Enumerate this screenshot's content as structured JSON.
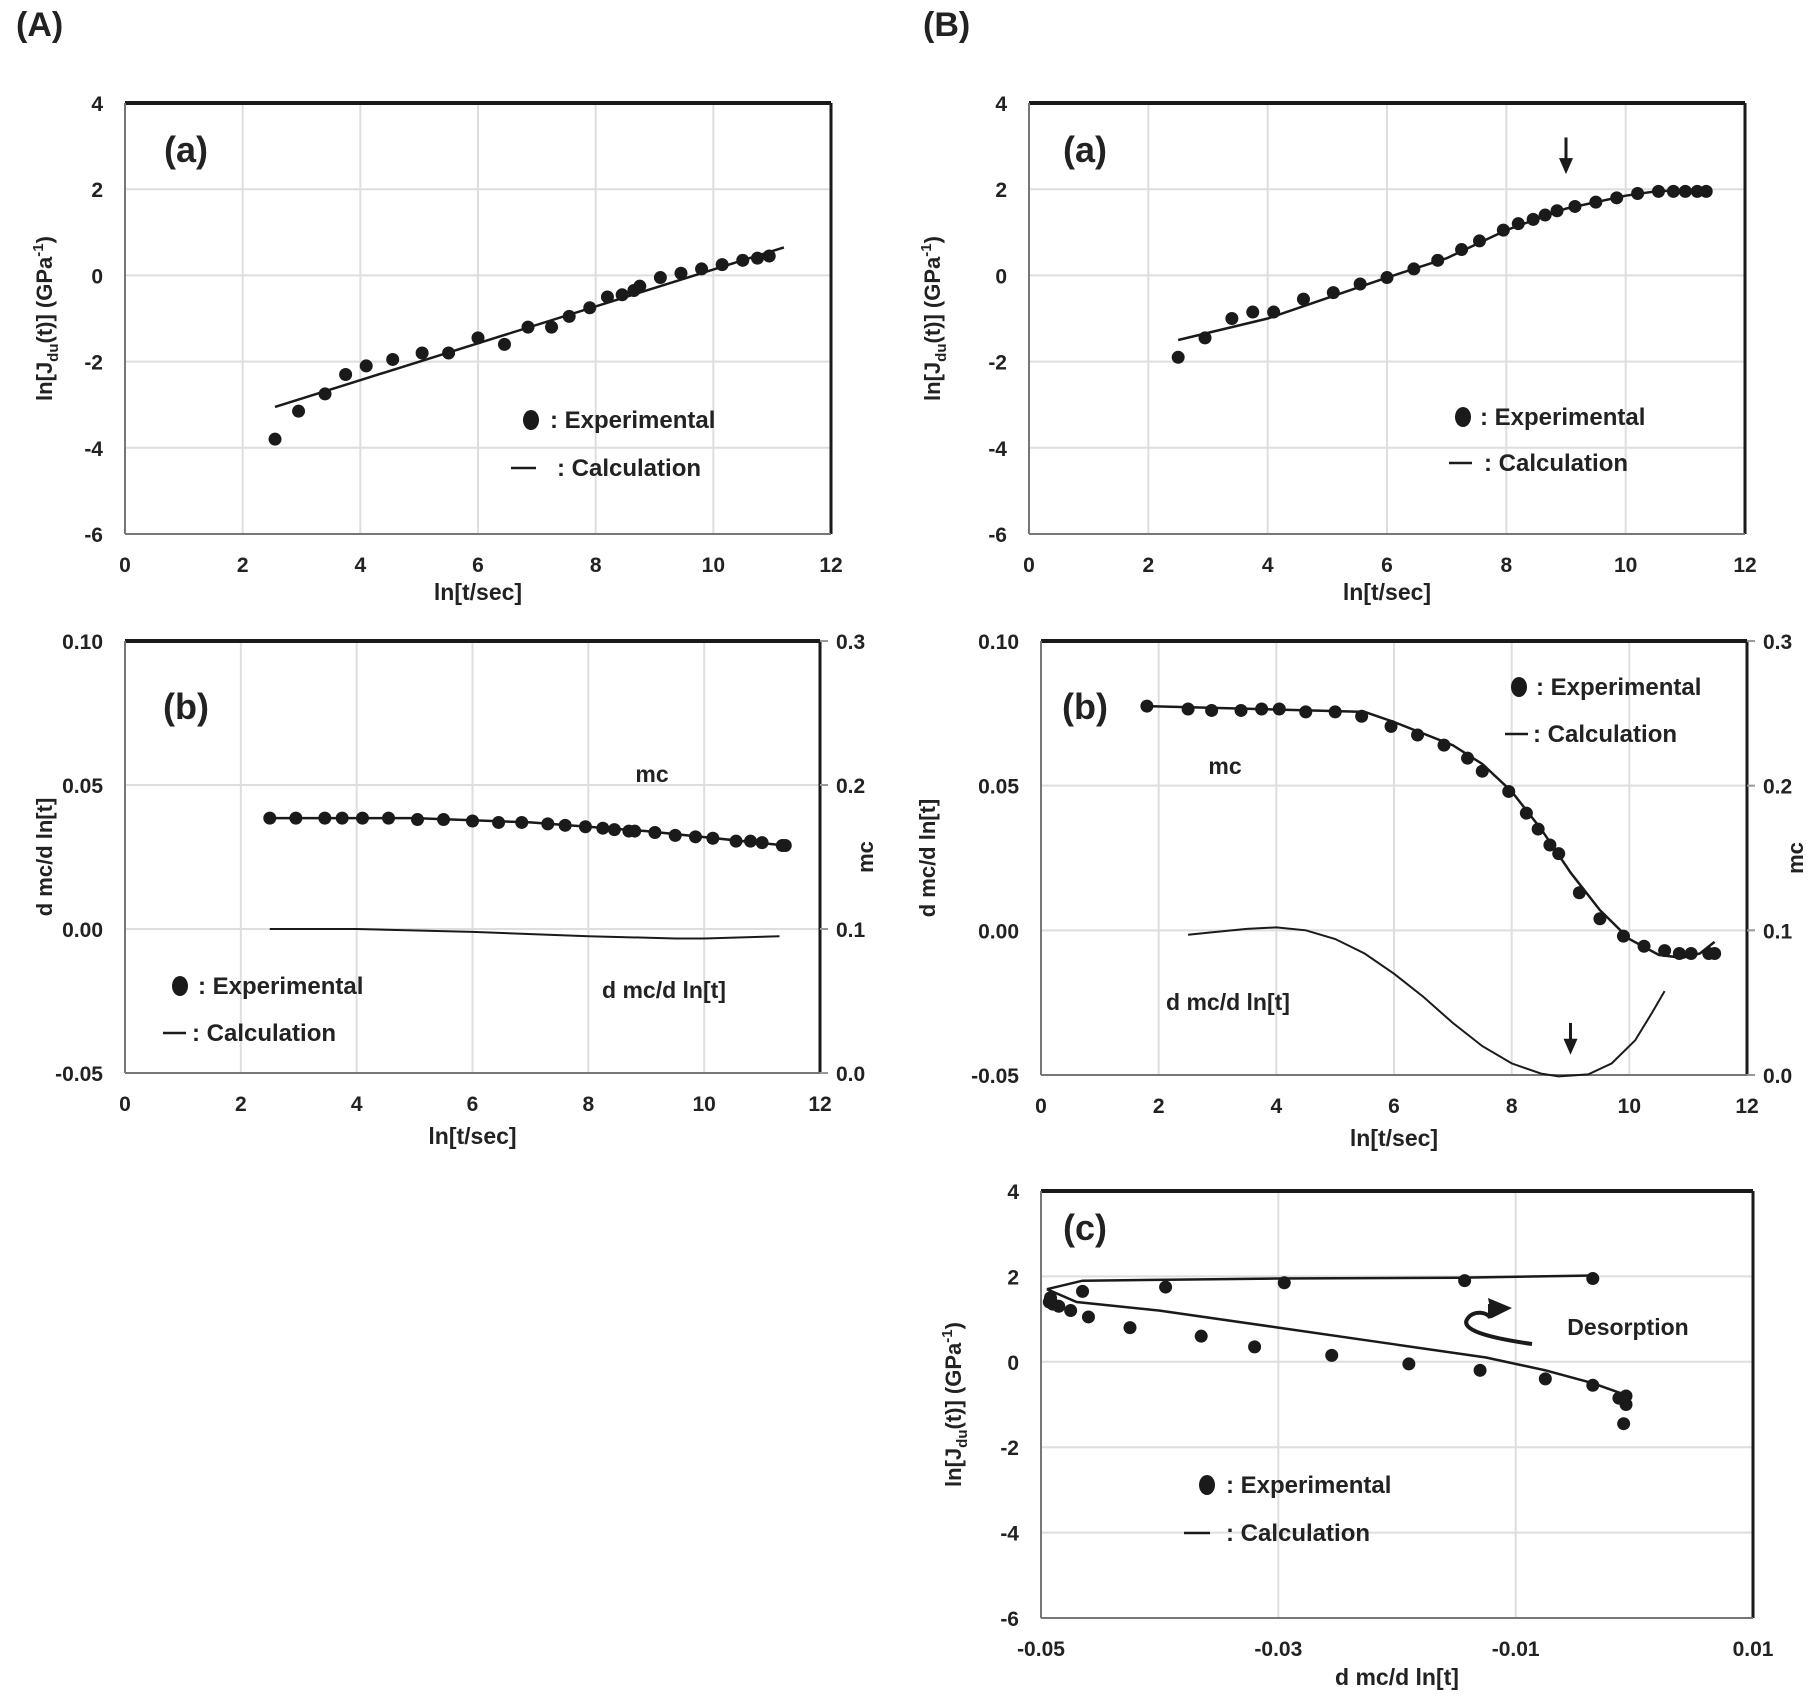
{
  "figure_labels": [
    "(A)",
    "(B)"
  ],
  "chart_data": [
    {
      "id": "A-a",
      "group": "(A)",
      "panel_label": "(a)",
      "type": "scatter+line",
      "xlabel": "ln[t/sec]",
      "ylabel_parts": [
        "ln[J",
        "du",
        "(t)]  (GPa",
        "-1",
        ")"
      ],
      "xlim": [
        0,
        12
      ],
      "ylim": [
        -6,
        4
      ],
      "xticks": [
        0,
        2,
        4,
        6,
        8,
        10,
        12
      ],
      "xtick_labels": [
        "0",
        "2",
        "4",
        "6",
        "8",
        "10",
        "12"
      ],
      "yticks": [
        -6,
        -4,
        -2,
        0,
        2,
        4
      ],
      "ytick_labels": [
        "-6",
        "-4",
        "-2",
        "0",
        "2",
        "4"
      ],
      "grid": true,
      "legend": [
        {
          "marker": "dot",
          "label": ": Experimental"
        },
        {
          "marker": "line",
          "label": ": Calculation"
        }
      ],
      "points": [
        [
          2.55,
          -3.8
        ],
        [
          2.95,
          -3.15
        ],
        [
          3.4,
          -2.75
        ],
        [
          3.75,
          -2.3
        ],
        [
          4.1,
          -2.1
        ],
        [
          4.55,
          -1.95
        ],
        [
          5.05,
          -1.8
        ],
        [
          5.5,
          -1.8
        ],
        [
          6.0,
          -1.45
        ],
        [
          6.45,
          -1.6
        ],
        [
          6.85,
          -1.2
        ],
        [
          7.25,
          -1.2
        ],
        [
          7.55,
          -0.95
        ],
        [
          7.9,
          -0.75
        ],
        [
          8.2,
          -0.5
        ],
        [
          8.45,
          -0.45
        ],
        [
          8.65,
          -0.35
        ],
        [
          8.75,
          -0.25
        ],
        [
          9.1,
          -0.05
        ],
        [
          9.45,
          0.05
        ],
        [
          9.8,
          0.15
        ],
        [
          10.15,
          0.25
        ],
        [
          10.5,
          0.35
        ],
        [
          10.75,
          0.4
        ],
        [
          10.95,
          0.45
        ]
      ],
      "lines": [
        [
          [
            2.55,
            -3.05
          ],
          [
            11.2,
            0.65
          ]
        ]
      ],
      "annotations": [],
      "arrows": []
    },
    {
      "id": "B-a",
      "group": "(B)",
      "panel_label": "(a)",
      "type": "scatter+line",
      "xlabel": "ln[t/sec]",
      "ylabel_parts": [
        "ln[J",
        "du",
        "(t)]  (GPa",
        "-1",
        ")"
      ],
      "xlim": [
        0,
        12
      ],
      "ylim": [
        -6,
        4
      ],
      "xticks": [
        0,
        2,
        4,
        6,
        8,
        10,
        12
      ],
      "xtick_labels": [
        "0",
        "2",
        "4",
        "6",
        "8",
        "10",
        "12"
      ],
      "yticks": [
        -6,
        -4,
        -2,
        0,
        2,
        4
      ],
      "ytick_labels": [
        "-6",
        "-4",
        "-2",
        "0",
        "2",
        "4"
      ],
      "grid": true,
      "legend": [
        {
          "marker": "dot",
          "label": ": Experimental"
        },
        {
          "marker": "line",
          "label": ": Calculation"
        }
      ],
      "points": [
        [
          2.5,
          -1.9
        ],
        [
          2.95,
          -1.45
        ],
        [
          3.4,
          -1.0
        ],
        [
          3.75,
          -0.85
        ],
        [
          4.1,
          -0.85
        ],
        [
          4.6,
          -0.55
        ],
        [
          5.1,
          -0.4
        ],
        [
          5.55,
          -0.2
        ],
        [
          6.0,
          -0.05
        ],
        [
          6.45,
          0.15
        ],
        [
          6.85,
          0.35
        ],
        [
          7.25,
          0.6
        ],
        [
          7.55,
          0.8
        ],
        [
          7.95,
          1.05
        ],
        [
          8.2,
          1.2
        ],
        [
          8.45,
          1.3
        ],
        [
          8.65,
          1.4
        ],
        [
          8.85,
          1.5
        ],
        [
          9.15,
          1.6
        ],
        [
          9.5,
          1.7
        ],
        [
          9.85,
          1.8
        ],
        [
          10.2,
          1.9
        ],
        [
          10.55,
          1.95
        ],
        [
          10.8,
          1.95
        ],
        [
          11.0,
          1.95
        ],
        [
          11.2,
          1.95
        ],
        [
          11.35,
          1.95
        ]
      ],
      "lines": [
        [
          [
            2.5,
            -1.5
          ],
          [
            4,
            -1.0
          ],
          [
            6,
            -0.05
          ],
          [
            7,
            0.4
          ],
          [
            8,
            1.05
          ],
          [
            9,
            1.55
          ],
          [
            10,
            1.85
          ],
          [
            10.5,
            1.95
          ],
          [
            11.3,
            2.0
          ]
        ]
      ],
      "annotations": [],
      "arrows": [
        {
          "x": 9.0,
          "from": 3.2,
          "to": 2.35
        }
      ]
    },
    {
      "id": "A-b",
      "group": "(A)",
      "panel_label": "(b)",
      "type": "scatter+line (dual axis)",
      "xlabel": "ln[t/sec]",
      "ylabel": "d mc/d ln[t]",
      "y2label": "mc",
      "xlim": [
        0,
        12
      ],
      "ylim": [
        -0.05,
        0.1
      ],
      "y2lim": [
        0.0,
        0.3
      ],
      "xticks": [
        0,
        2,
        4,
        6,
        8,
        10,
        12
      ],
      "xtick_labels": [
        "0",
        "2",
        "4",
        "6",
        "8",
        "10",
        "12"
      ],
      "yticks": [
        -0.05,
        0,
        0.05,
        0.1
      ],
      "ytick_labels": [
        "-0.05",
        "0.00",
        "0.05",
        "0.10"
      ],
      "y2ticks": [
        0,
        0.1,
        0.2,
        0.3
      ],
      "y2tick_labels": [
        "0.0",
        "0.1",
        "0.2",
        "0.3"
      ],
      "grid": true,
      "legend": [
        {
          "marker": "dot",
          "label": ": Experimental"
        },
        {
          "marker": "line",
          "label": ": Calculation"
        }
      ],
      "mc_points": [
        [
          2.5,
          0.177
        ],
        [
          2.95,
          0.177
        ],
        [
          3.45,
          0.177
        ],
        [
          3.75,
          0.177
        ],
        [
          4.1,
          0.177
        ],
        [
          4.55,
          0.177
        ],
        [
          5.05,
          0.176
        ],
        [
          5.5,
          0.176
        ],
        [
          6.0,
          0.175
        ],
        [
          6.45,
          0.174
        ],
        [
          6.85,
          0.174
        ],
        [
          7.3,
          0.173
        ],
        [
          7.6,
          0.172
        ],
        [
          7.95,
          0.171
        ],
        [
          8.25,
          0.17
        ],
        [
          8.45,
          0.169
        ],
        [
          8.7,
          0.168
        ],
        [
          8.8,
          0.168
        ],
        [
          9.15,
          0.167
        ],
        [
          9.5,
          0.165
        ],
        [
          9.85,
          0.164
        ],
        [
          10.15,
          0.163
        ],
        [
          10.55,
          0.161
        ],
        [
          10.8,
          0.161
        ],
        [
          11.0,
          0.16
        ],
        [
          11.35,
          0.158
        ],
        [
          11.4,
          0.158
        ]
      ],
      "mc_line": [
        [
          2.5,
          0.177
        ],
        [
          5,
          0.177
        ],
        [
          7,
          0.174
        ],
        [
          9,
          0.168
        ],
        [
          11.4,
          0.158
        ]
      ],
      "dmc_line": [
        [
          2.5,
          0.0
        ],
        [
          4,
          0.0
        ],
        [
          6,
          -0.001
        ],
        [
          8,
          -0.0025
        ],
        [
          9.5,
          -0.0033
        ],
        [
          10,
          -0.0033
        ],
        [
          11.3,
          -0.0025
        ]
      ],
      "annotations": [
        "mc",
        "d mc/d ln[t]"
      ],
      "arrows": []
    },
    {
      "id": "B-b",
      "group": "(B)",
      "panel_label": "(b)",
      "type": "scatter+line (dual axis)",
      "xlabel": "ln[t/sec]",
      "ylabel": "d mc/d ln[t]",
      "y2label": "mc",
      "xlim": [
        0,
        12
      ],
      "ylim": [
        -0.05,
        0.1
      ],
      "y2lim": [
        0.0,
        0.3
      ],
      "xticks": [
        0,
        2,
        4,
        6,
        8,
        10,
        12
      ],
      "xtick_labels": [
        "0",
        "2",
        "4",
        "6",
        "8",
        "10",
        "12"
      ],
      "yticks": [
        -0.05,
        0,
        0.05,
        0.1
      ],
      "ytick_labels": [
        "-0.05",
        "0.00",
        "0.05",
        "0.10"
      ],
      "y2ticks": [
        0,
        0.1,
        0.2,
        0.3
      ],
      "y2tick_labels": [
        "0.0",
        "0.1",
        "0.2",
        "0.3"
      ],
      "grid": true,
      "legend": [
        {
          "marker": "dot",
          "label": ": Experimental"
        },
        {
          "marker": "line",
          "label": ": Calculation"
        }
      ],
      "mc_points": [
        [
          1.8,
          0.255
        ],
        [
          2.5,
          0.253
        ],
        [
          2.9,
          0.252
        ],
        [
          3.4,
          0.252
        ],
        [
          3.75,
          0.253
        ],
        [
          4.05,
          0.253
        ],
        [
          4.5,
          0.251
        ],
        [
          5.0,
          0.251
        ],
        [
          5.45,
          0.248
        ],
        [
          5.95,
          0.241
        ],
        [
          6.4,
          0.235
        ],
        [
          6.85,
          0.228
        ],
        [
          7.25,
          0.219
        ],
        [
          7.5,
          0.21
        ],
        [
          7.95,
          0.196
        ],
        [
          8.25,
          0.181
        ],
        [
          8.45,
          0.17
        ],
        [
          8.65,
          0.159
        ],
        [
          8.8,
          0.153
        ],
        [
          9.15,
          0.126
        ],
        [
          9.5,
          0.108
        ],
        [
          9.9,
          0.096
        ],
        [
          10.25,
          0.089
        ],
        [
          10.6,
          0.086
        ],
        [
          10.85,
          0.084
        ],
        [
          11.05,
          0.084
        ],
        [
          11.35,
          0.084
        ],
        [
          11.45,
          0.084
        ]
      ],
      "mc_line": [
        [
          1.8,
          0.255
        ],
        [
          5.5,
          0.251
        ],
        [
          6,
          0.244
        ],
        [
          7,
          0.228
        ],
        [
          7.5,
          0.215
        ],
        [
          8,
          0.196
        ],
        [
          8.5,
          0.17
        ],
        [
          9,
          0.14
        ],
        [
          9.5,
          0.114
        ],
        [
          10,
          0.094
        ],
        [
          10.5,
          0.083
        ],
        [
          10.9,
          0.081
        ],
        [
          11.2,
          0.084
        ],
        [
          11.45,
          0.092
        ]
      ],
      "dmc_line": [
        [
          2.5,
          -0.0015
        ],
        [
          3,
          -0.0005
        ],
        [
          3.5,
          0.0005
        ],
        [
          4,
          0.001
        ],
        [
          4.5,
          0.0
        ],
        [
          5,
          -0.003
        ],
        [
          5.5,
          -0.008
        ],
        [
          6,
          -0.015
        ],
        [
          6.5,
          -0.023
        ],
        [
          7,
          -0.032
        ],
        [
          7.5,
          -0.04
        ],
        [
          8,
          -0.046
        ],
        [
          8.5,
          -0.0495
        ],
        [
          8.8,
          -0.0505
        ],
        [
          9.3,
          -0.0498
        ],
        [
          9.7,
          -0.046
        ],
        [
          10.1,
          -0.038
        ],
        [
          10.4,
          -0.028
        ],
        [
          10.6,
          -0.021
        ]
      ],
      "annotations": [
        "mc",
        "d mc/d ln[t]"
      ],
      "arrows": [
        {
          "x": 9.0,
          "from": -0.032,
          "to": -0.043
        }
      ]
    },
    {
      "id": "B-c",
      "group": "(B)",
      "panel_label": "(c)",
      "type": "scatter+line",
      "xlabel": "d mc/d ln[t]",
      "ylabel_parts": [
        "ln[J",
        "du",
        "(t)]  (GPa",
        "-1",
        ")"
      ],
      "xlim": [
        -0.05,
        0.01
      ],
      "ylim": [
        -6,
        4
      ],
      "xticks": [
        -0.05,
        -0.03,
        -0.01,
        0.01
      ],
      "xtick_labels": [
        "-0.05",
        "-0.03",
        "-0.01",
        "0.01"
      ],
      "yticks": [
        -6,
        -4,
        -2,
        0,
        2,
        4
      ],
      "ytick_labels": [
        "-6",
        "-4",
        "-2",
        "0",
        "2",
        "4"
      ],
      "grid": true,
      "legend": [
        {
          "marker": "dot",
          "label": ": Experimental"
        },
        {
          "marker": "line",
          "label": ": Calculation"
        }
      ],
      "points": [
        [
          -0.0493,
          1.4
        ],
        [
          -0.0492,
          1.5
        ],
        [
          -0.049,
          1.35
        ],
        [
          -0.0485,
          1.3
        ],
        [
          -0.0475,
          1.2
        ],
        [
          -0.0465,
          1.65
        ],
        [
          -0.046,
          1.05
        ],
        [
          -0.0425,
          0.8
        ],
        [
          -0.0395,
          1.75
        ],
        [
          -0.0365,
          0.6
        ],
        [
          -0.032,
          0.35
        ],
        [
          -0.0295,
          1.85
        ],
        [
          -0.0255,
          0.15
        ],
        [
          -0.019,
          -0.05
        ],
        [
          -0.0143,
          1.9
        ],
        [
          -0.013,
          -0.2
        ],
        [
          -0.0075,
          -0.4
        ],
        [
          -0.0035,
          -0.55
        ],
        [
          -0.0013,
          -0.85
        ],
        [
          -0.0007,
          -0.8
        ],
        [
          -0.0007,
          -1.0
        ],
        [
          -0.0009,
          -1.45
        ],
        [
          -0.0035,
          1.95
        ]
      ],
      "lines": [
        [
          [
            -0.0495,
            1.7
          ],
          [
            -0.0465,
            1.9
          ],
          [
            -0.03,
            1.95
          ],
          [
            -0.015,
            1.97
          ],
          [
            -0.0035,
            2.02
          ]
        ],
        [
          [
            -0.0495,
            1.7
          ],
          [
            -0.047,
            1.4
          ],
          [
            -0.04,
            1.2
          ],
          [
            -0.03,
            0.8
          ],
          [
            -0.02,
            0.4
          ],
          [
            -0.0125,
            0.1
          ],
          [
            -0.0075,
            -0.2
          ],
          [
            -0.0035,
            -0.5
          ],
          [
            -0.001,
            -0.75
          ]
        ]
      ],
      "annotations": [
        "Desorption"
      ],
      "arrows": []
    }
  ]
}
